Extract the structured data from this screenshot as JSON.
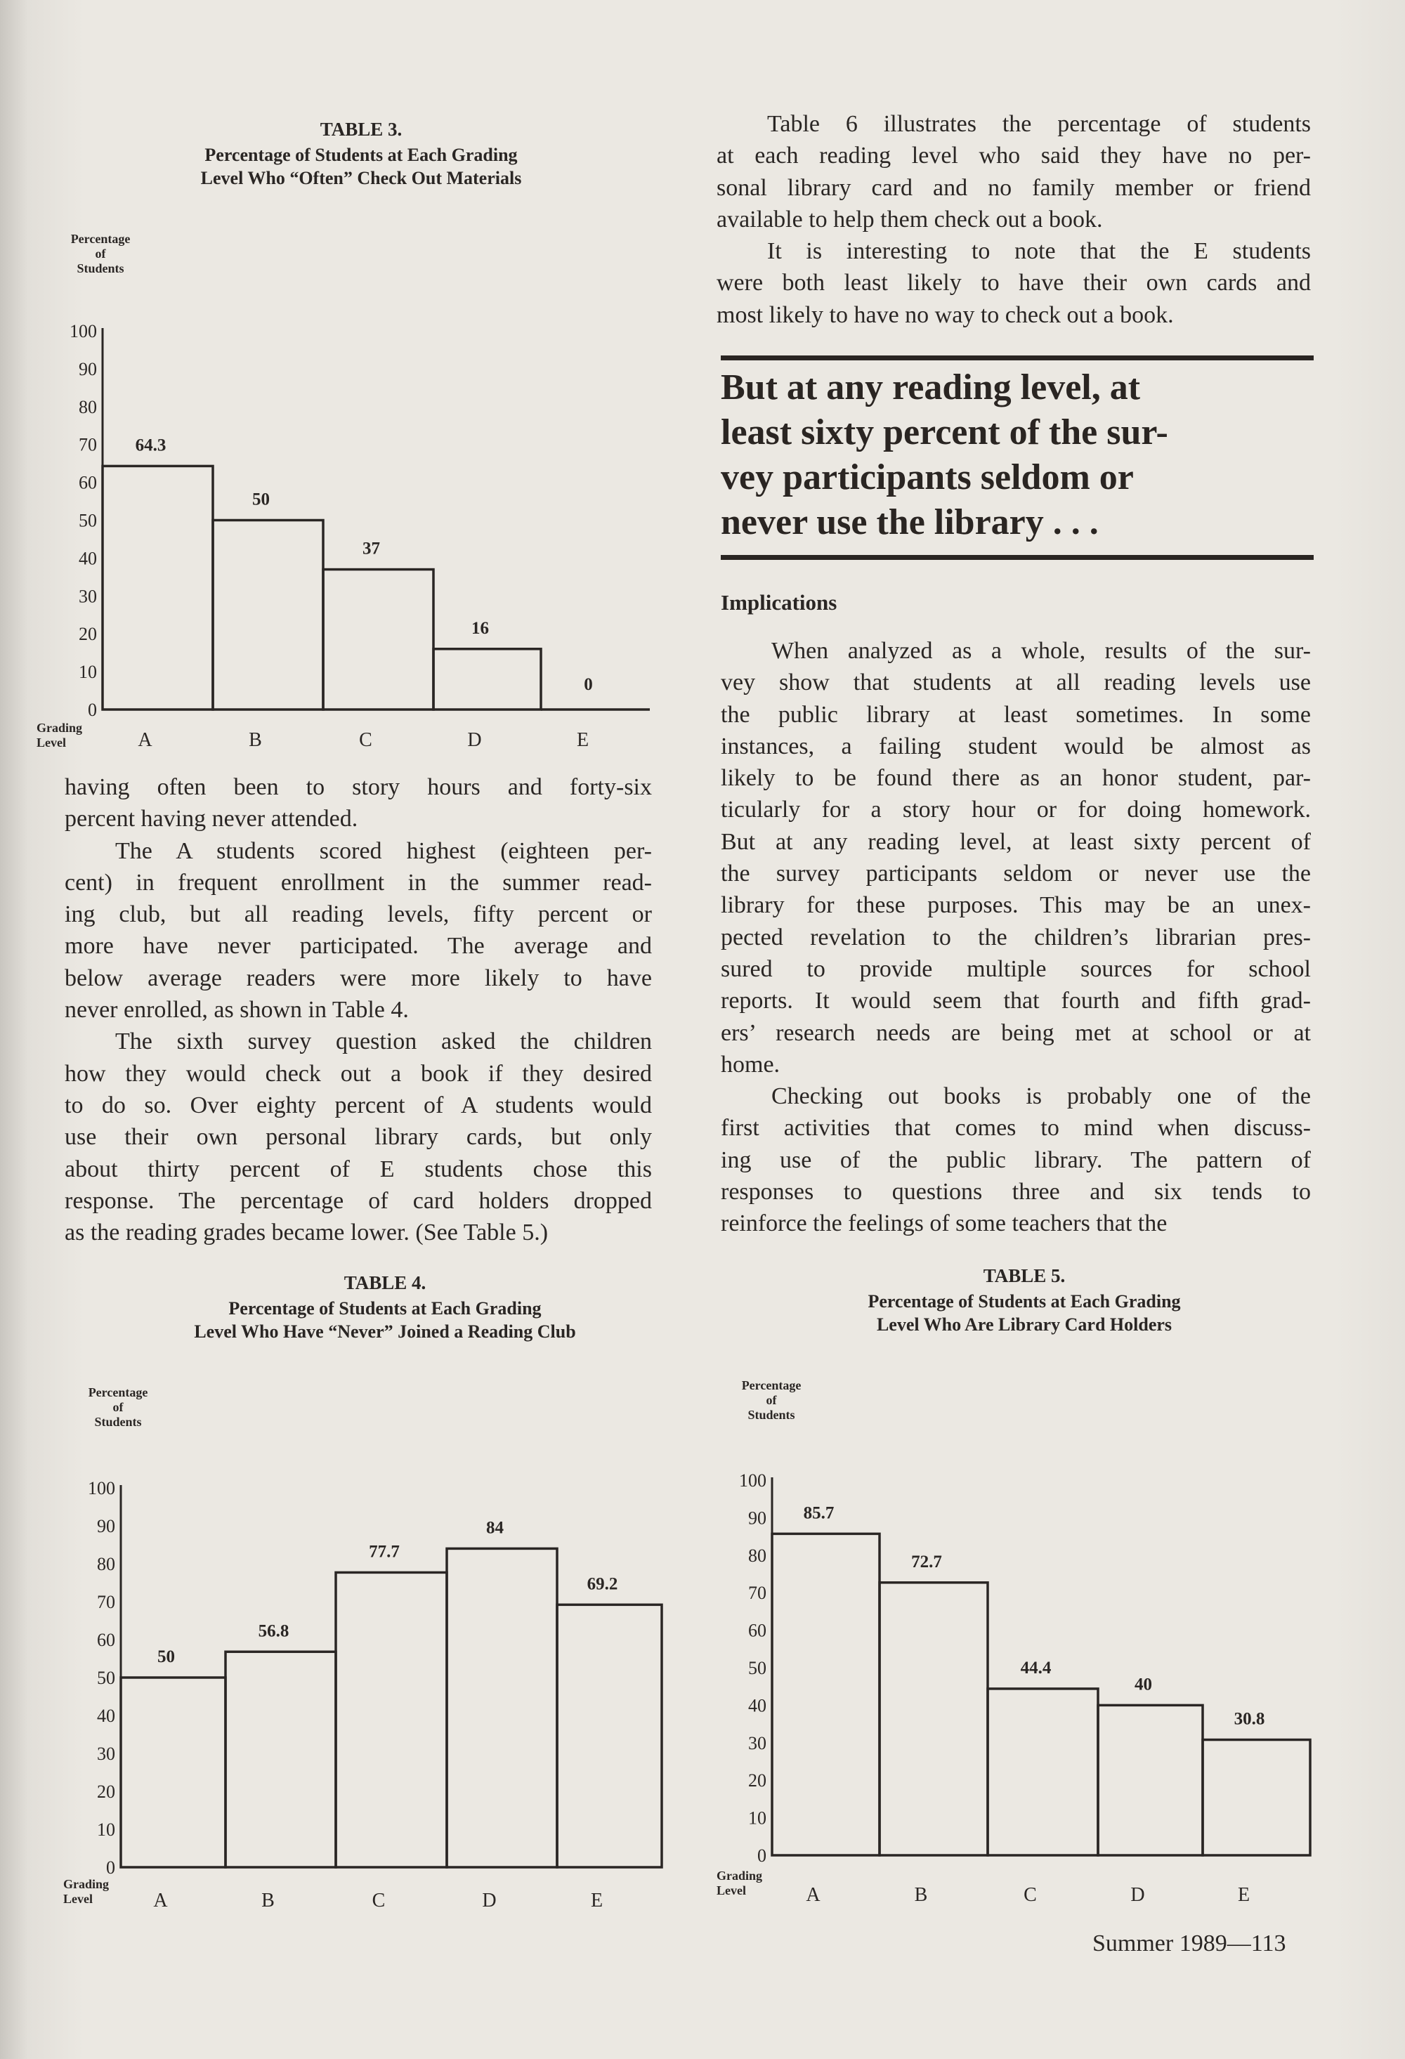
{
  "left_column": {
    "paragraphs": [
      {
        "indent": false,
        "lines": [
          "having often been to story hours and forty-six",
          "percent having never attended."
        ]
      },
      {
        "indent": true,
        "lines": [
          "The A students scored highest (eighteen per-",
          "cent) in frequent enrollment in the summer read-",
          "ing club, but all reading levels, fifty percent or",
          "more have never participated. The average and",
          "below average readers were more likely to have",
          "never enrolled, as shown in Table 4."
        ]
      },
      {
        "indent": true,
        "lines": [
          "The sixth survey question asked the children",
          "how they would check out a book if they desired",
          "to do so. Over eighty percent of A students would",
          "use their own personal library cards, but only",
          "about thirty percent of E students chose this",
          "response. The percentage of card holders dropped",
          "as the reading grades became lower. (See Table 5.)"
        ]
      }
    ]
  },
  "right_column_top": {
    "paragraphs": [
      {
        "indent": true,
        "lines": [
          "Table 6 illustrates the percentage of students",
          "at each reading level who said they have no per-",
          "sonal library card and no family member or friend",
          "available to help them check out a book."
        ]
      },
      {
        "indent": true,
        "lines": [
          "It is interesting to note that the E students",
          "were both least likely to have their own cards and",
          "most likely to have no way to check out a book."
        ]
      }
    ]
  },
  "pull_quote": {
    "lines": [
      "But at any reading level, at",
      "least sixty percent of the sur-",
      "vey participants seldom or",
      "never use the library . . ."
    ]
  },
  "implications": {
    "heading": "Implications",
    "paragraphs": [
      {
        "indent": true,
        "lines": [
          "When analyzed as a whole, results of the sur-",
          "vey show that students at all reading levels use",
          "the public library at least sometimes. In some",
          "instances, a failing student would be almost as",
          "likely to be found there as an honor student, par-",
          "ticularly for a story hour or for doing homework.",
          "But at any reading level, at least sixty percent of",
          "the survey participants seldom or never use the",
          "library for these purposes. This may be an unex-",
          "pected revelation to the children’s librarian pres-",
          "sured to provide multiple sources for school",
          "reports. It would seem that fourth and fifth grad-",
          "ers’ research needs are being met at school or at",
          "home."
        ]
      },
      {
        "indent": true,
        "lines": [
          "Checking out books is probably one of the",
          "first activities that comes to mind when discuss-",
          "ing use of the public library. The pattern of",
          "responses to questions three and six tends to",
          "reinforce the feelings of some teachers that the"
        ]
      }
    ]
  },
  "footer": {
    "page_label": "Summer 1989—113"
  },
  "chart_data": [
    {
      "type": "bar",
      "label": "TABLE 3.",
      "title": "Percentage of Students at Each Grading\nLevel Who “Often” Check Out Materials",
      "ylabel": "Percentage\nof\nStudents",
      "xlabel": "Grading\nLevel",
      "categories": [
        "A",
        "B",
        "C",
        "D",
        "E"
      ],
      "values": [
        64.3,
        50,
        37,
        16,
        0
      ],
      "value_labels": [
        "64.3",
        "50",
        "37",
        "16",
        "0"
      ],
      "yticks": [
        0,
        10,
        20,
        30,
        40,
        50,
        60,
        70,
        80,
        90,
        100
      ],
      "ylim": [
        0,
        100
      ]
    },
    {
      "type": "bar",
      "label": "TABLE 4.",
      "title": "Percentage of Students at Each Grading\nLevel Who Have “Never” Joined a Reading Club",
      "ylabel": "Percentage\nof\nStudents",
      "xlabel": "Grading\nLevel",
      "categories": [
        "A",
        "B",
        "C",
        "D",
        "E"
      ],
      "values": [
        50,
        56.8,
        77.7,
        84,
        69.2
      ],
      "value_labels": [
        "50",
        "56.8",
        "77.7",
        "84",
        "69.2"
      ],
      "yticks": [
        0,
        10,
        20,
        30,
        40,
        50,
        60,
        70,
        80,
        90,
        100
      ],
      "ylim": [
        0,
        100
      ]
    },
    {
      "type": "bar",
      "label": "TABLE 5.",
      "title": "Percentage of Students at Each Grading\nLevel Who Are Library Card Holders",
      "ylabel": "Percentage\nof\nStudents",
      "xlabel": "Grading\nLevel",
      "categories": [
        "A",
        "B",
        "C",
        "D",
        "E"
      ],
      "values": [
        85.7,
        72.7,
        44.4,
        40,
        30.8
      ],
      "value_labels": [
        "85.7",
        "72.7",
        "44.4",
        "40",
        "30.8"
      ],
      "yticks": [
        0,
        10,
        20,
        30,
        40,
        50,
        60,
        70,
        80,
        90,
        100
      ],
      "ylim": [
        0,
        100
      ]
    }
  ]
}
